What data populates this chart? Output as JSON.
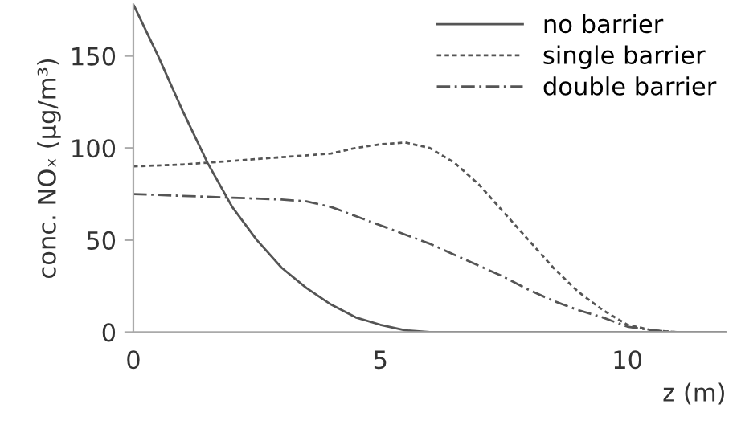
{
  "chart_data": {
    "type": "line",
    "xlabel": "z (m)",
    "ylabel": "conc. NOₓ (μg/m³)",
    "xlim": [
      0,
      12
    ],
    "ylim": [
      0,
      178
    ],
    "xticks": [
      0,
      5,
      10
    ],
    "yticks": [
      0,
      50,
      100,
      150
    ],
    "grid": false,
    "legend": "top right",
    "marker": "none",
    "series": [
      {
        "name": "no barrier",
        "color": "#555555",
        "line_style": "solid",
        "x": [
          0,
          0.5,
          1,
          1.5,
          2,
          2.5,
          3,
          3.5,
          4,
          4.5,
          5,
          5.5,
          6,
          12
        ],
        "values": [
          178,
          150,
          120,
          92,
          68,
          50,
          35,
          24,
          15,
          8,
          4,
          1,
          0,
          0
        ]
      },
      {
        "name": "single barrier",
        "color": "#555555",
        "line_style": "dotted",
        "x": [
          0,
          1,
          2,
          3,
          4,
          4.5,
          5,
          5.5,
          6,
          6.5,
          7,
          7.5,
          8,
          8.5,
          9,
          9.5,
          10,
          10.5,
          11,
          12
        ],
        "values": [
          90,
          91,
          93,
          95,
          97,
          100,
          102,
          103,
          100,
          92,
          80,
          65,
          50,
          35,
          22,
          12,
          4,
          1,
          0,
          0
        ]
      },
      {
        "name": "double barrier",
        "color": "#555555",
        "line_style": "dashdot",
        "x": [
          0,
          1,
          2,
          3,
          3.5,
          4,
          4.5,
          5,
          5.5,
          6,
          6.5,
          7,
          7.5,
          8,
          8.5,
          9,
          9.5,
          10,
          10.5,
          11,
          12
        ],
        "values": [
          75,
          74,
          73,
          72,
          71,
          68,
          63,
          58,
          53,
          48,
          42,
          36,
          30,
          23,
          17,
          12,
          8,
          3,
          1,
          0,
          0
        ]
      }
    ]
  }
}
